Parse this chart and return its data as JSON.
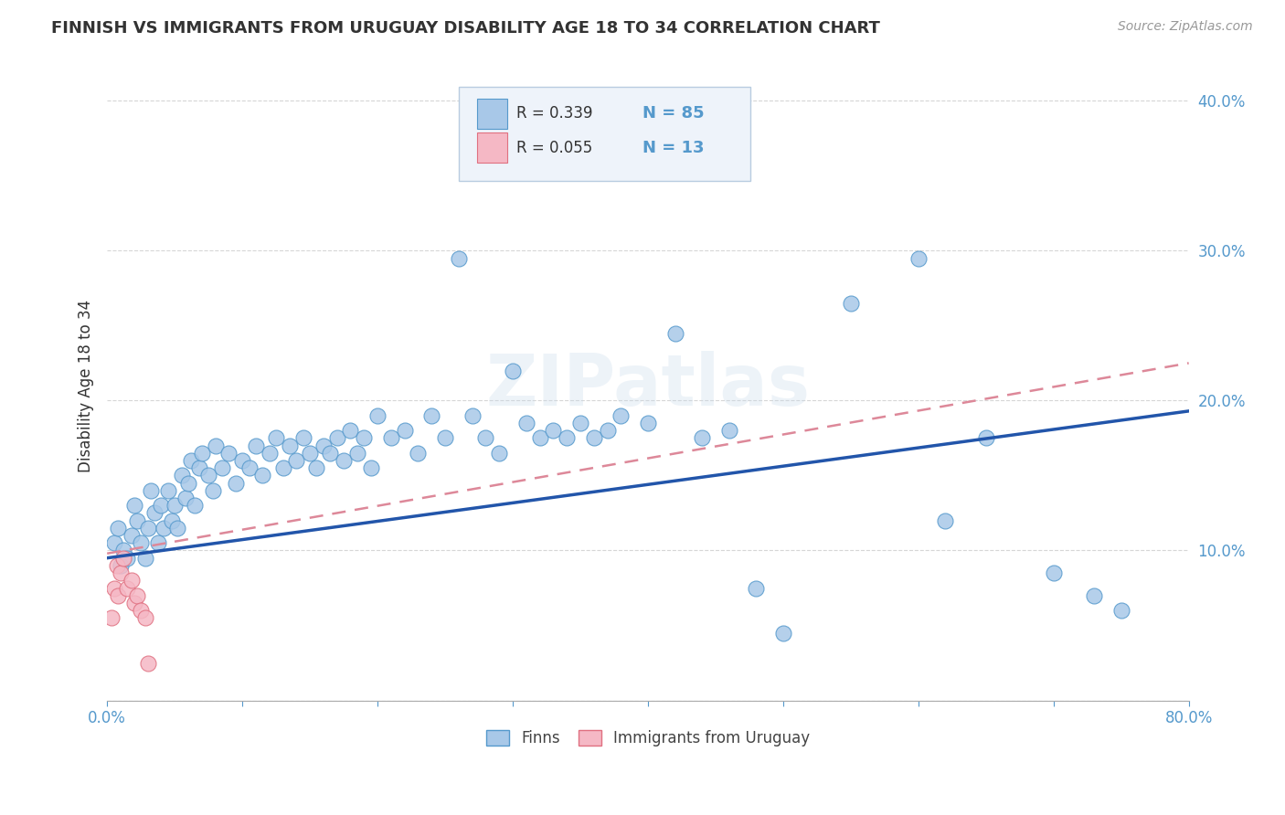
{
  "title": "FINNISH VS IMMIGRANTS FROM URUGUAY DISABILITY AGE 18 TO 34 CORRELATION CHART",
  "source": "Source: ZipAtlas.com",
  "ylabel": "Disability Age 18 to 34",
  "legend_label1": "Finns",
  "legend_label2": "Immigrants from Uruguay",
  "R1": 0.339,
  "N1": 85,
  "R2": 0.055,
  "N2": 13,
  "xlim": [
    0.0,
    0.8
  ],
  "ylim": [
    0.0,
    0.42
  ],
  "watermark": "ZIPatlas",
  "finns_x": [
    0.005,
    0.008,
    0.01,
    0.012,
    0.015,
    0.018,
    0.02,
    0.022,
    0.025,
    0.028,
    0.03,
    0.032,
    0.035,
    0.038,
    0.04,
    0.042,
    0.045,
    0.048,
    0.05,
    0.052,
    0.055,
    0.058,
    0.06,
    0.062,
    0.065,
    0.068,
    0.07,
    0.075,
    0.078,
    0.08,
    0.085,
    0.09,
    0.095,
    0.1,
    0.105,
    0.11,
    0.115,
    0.12,
    0.125,
    0.13,
    0.135,
    0.14,
    0.145,
    0.15,
    0.155,
    0.16,
    0.165,
    0.17,
    0.175,
    0.18,
    0.185,
    0.19,
    0.195,
    0.2,
    0.21,
    0.22,
    0.23,
    0.24,
    0.25,
    0.26,
    0.27,
    0.28,
    0.29,
    0.3,
    0.31,
    0.32,
    0.33,
    0.34,
    0.35,
    0.36,
    0.37,
    0.38,
    0.4,
    0.42,
    0.44,
    0.46,
    0.48,
    0.5,
    0.55,
    0.6,
    0.62,
    0.65,
    0.7,
    0.73,
    0.75
  ],
  "finns_y": [
    0.105,
    0.115,
    0.09,
    0.1,
    0.095,
    0.11,
    0.13,
    0.12,
    0.105,
    0.095,
    0.115,
    0.14,
    0.125,
    0.105,
    0.13,
    0.115,
    0.14,
    0.12,
    0.13,
    0.115,
    0.15,
    0.135,
    0.145,
    0.16,
    0.13,
    0.155,
    0.165,
    0.15,
    0.14,
    0.17,
    0.155,
    0.165,
    0.145,
    0.16,
    0.155,
    0.17,
    0.15,
    0.165,
    0.175,
    0.155,
    0.17,
    0.16,
    0.175,
    0.165,
    0.155,
    0.17,
    0.165,
    0.175,
    0.16,
    0.18,
    0.165,
    0.175,
    0.155,
    0.19,
    0.175,
    0.18,
    0.165,
    0.19,
    0.175,
    0.295,
    0.19,
    0.175,
    0.165,
    0.22,
    0.185,
    0.175,
    0.18,
    0.175,
    0.185,
    0.175,
    0.18,
    0.19,
    0.185,
    0.245,
    0.175,
    0.18,
    0.075,
    0.045,
    0.265,
    0.295,
    0.12,
    0.175,
    0.085,
    0.07,
    0.06
  ],
  "uruguay_x": [
    0.003,
    0.005,
    0.007,
    0.008,
    0.01,
    0.012,
    0.015,
    0.018,
    0.02,
    0.022,
    0.025,
    0.028,
    0.03
  ],
  "uruguay_y": [
    0.055,
    0.075,
    0.09,
    0.07,
    0.085,
    0.095,
    0.075,
    0.08,
    0.065,
    0.07,
    0.06,
    0.055,
    0.025
  ],
  "finns_color": "#a8c8e8",
  "finns_edge_color": "#5599cc",
  "uruguay_color": "#f5b8c5",
  "uruguay_edge_color": "#e07080",
  "trend_finns_color": "#2255aa",
  "trend_uruguay_color": "#dd8899",
  "trend_finns_start_y": 0.095,
  "trend_finns_end_y": 0.193,
  "trend_uru_start_y": 0.098,
  "trend_uru_end_y": 0.225,
  "background_color": "#ffffff",
  "grid_color": "#cccccc",
  "title_color": "#333333",
  "axis_label_color": "#5599cc",
  "legend_box_color": "#eef3fa",
  "legend_border_color": "#b8cce0",
  "ytick_labels": [
    "",
    "10.0%",
    "20.0%",
    "30.0%",
    "40.0%"
  ],
  "ytick_values": [
    0.0,
    0.1,
    0.2,
    0.3,
    0.4
  ],
  "xtick_values": [
    0.0,
    0.1,
    0.2,
    0.3,
    0.4,
    0.5,
    0.6,
    0.7,
    0.8
  ],
  "xtick_labels": [
    "0.0%",
    "",
    "",
    "",
    "",
    "",
    "",
    "",
    "80.0%"
  ]
}
